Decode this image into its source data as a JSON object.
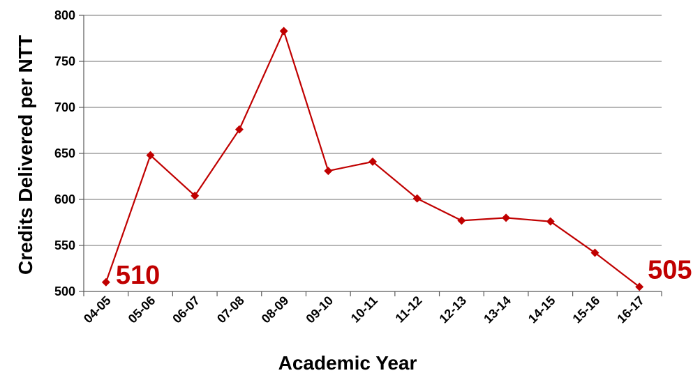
{
  "chart_data": {
    "type": "line",
    "title": "",
    "xlabel": "Academic Year",
    "ylabel": "Credits Delivered per NTT",
    "categories": [
      "04-05",
      "05-06",
      "06-07",
      "07-08",
      "08-09",
      "09-10",
      "10-11",
      "11-12",
      "12-13",
      "13-14",
      "14-15",
      "15-16",
      "16-17"
    ],
    "series": [
      {
        "values": [
          510,
          648,
          604,
          676,
          783,
          631,
          641,
          601,
          577,
          580,
          576,
          542,
          505
        ],
        "color": "#c00000"
      }
    ],
    "ylim": [
      500,
      800
    ],
    "yticks": [
      500,
      550,
      600,
      650,
      700,
      750,
      800
    ],
    "grid": true,
    "legend": "none",
    "annotations": [
      {
        "index": 0,
        "text": "510"
      },
      {
        "index": 12,
        "text": "505"
      }
    ],
    "colors": {
      "line": "#c00000",
      "grid": "#8c8c8c",
      "axis": "#595959",
      "label": "#c00000"
    }
  }
}
